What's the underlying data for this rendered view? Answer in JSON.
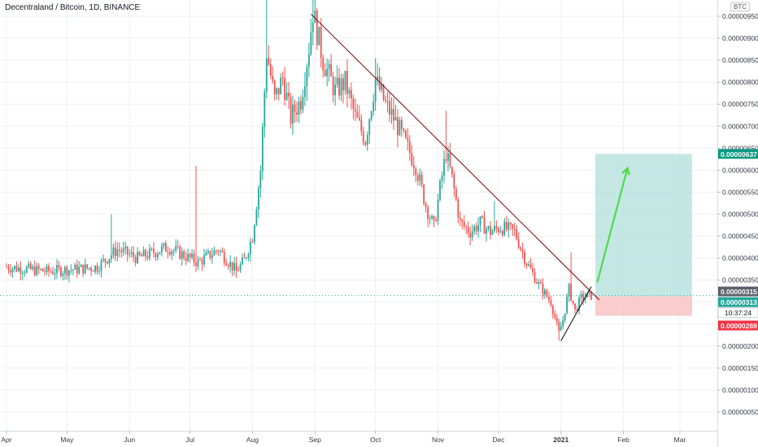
{
  "chart_data": {
    "type": "candlestick",
    "title": "Decentraland / Bitcoin, 1D, BINANCE",
    "unit_badge": "BTC",
    "x_tick_labels": [
      "Apr",
      "May",
      "Jun",
      "Jul",
      "Aug",
      "Sep",
      "Oct",
      "Nov",
      "Dec",
      "2021",
      "Feb",
      "Mar"
    ],
    "x_tick_days": [
      0,
      30,
      61,
      91,
      122,
      153,
      183,
      214,
      244,
      275,
      306,
      334
    ],
    "y_tick_labels": [
      "0.00000950",
      "0.00000900",
      "0.00000850",
      "0.00000800",
      "0.00000750",
      "0.00000700",
      "0.00000650",
      "0.00000600",
      "0.00000550",
      "0.00000500",
      "0.00000450",
      "0.00000400",
      "0.00000350",
      "0.00000300",
      "0.00000250",
      "0.00000200",
      "0.00000150",
      "0.00000100",
      "0.00000050"
    ],
    "y_tick_values": [
      950,
      900,
      850,
      800,
      750,
      700,
      650,
      600,
      550,
      500,
      450,
      400,
      350,
      300,
      250,
      200,
      150,
      100,
      50
    ],
    "price_scale": "1e-8 BTC",
    "ylim": [
      -1,
      1000
    ],
    "grid": true,
    "up_color": "#26a69a",
    "down_color": "#ef5350",
    "price_path": [
      [
        0,
        380
      ],
      [
        20,
        370
      ],
      [
        35,
        375
      ],
      [
        45,
        380
      ],
      [
        55,
        420
      ],
      [
        65,
        400
      ],
      [
        80,
        425
      ],
      [
        95,
        390
      ],
      [
        105,
        420
      ],
      [
        114,
        370
      ],
      [
        118,
        395
      ],
      [
        122,
        450
      ],
      [
        126,
        600
      ],
      [
        129,
        870
      ],
      [
        133,
        760
      ],
      [
        137,
        810
      ],
      [
        141,
        720
      ],
      [
        146,
        760
      ],
      [
        150,
        880
      ],
      [
        152,
        960
      ],
      [
        157,
        850
      ],
      [
        163,
        780
      ],
      [
        168,
        800
      ],
      [
        173,
        720
      ],
      [
        178,
        670
      ],
      [
        183,
        805
      ],
      [
        188,
        750
      ],
      [
        193,
        710
      ],
      [
        198,
        660
      ],
      [
        203,
        610
      ],
      [
        208,
        520
      ],
      [
        212,
        470
      ],
      [
        215,
        560
      ],
      [
        218,
        640
      ],
      [
        221,
        580
      ],
      [
        225,
        480
      ],
      [
        230,
        460
      ],
      [
        235,
        480
      ],
      [
        240,
        460
      ],
      [
        245,
        470
      ],
      [
        252,
        460
      ],
      [
        258,
        390
      ],
      [
        264,
        340
      ],
      [
        270,
        300
      ],
      [
        274,
        230
      ],
      [
        276,
        260
      ],
      [
        279,
        330
      ],
      [
        282,
        280
      ],
      [
        285,
        310
      ],
      [
        290,
        315
      ]
    ],
    "spikes": [
      {
        "day": 52,
        "high": 500
      },
      {
        "day": 94,
        "high": 610
      },
      {
        "day": 129,
        "high": 1000
      },
      {
        "day": 152,
        "high": 990
      },
      {
        "day": 183,
        "high": 855
      },
      {
        "day": 188,
        "high": 770
      },
      {
        "day": 218,
        "high": 735
      },
      {
        "day": 242,
        "high": 530
      },
      {
        "day": 280,
        "high": 413
      }
    ],
    "lows": [
      {
        "day": 114,
        "low": 355
      },
      {
        "day": 274,
        "low": 212
      }
    ],
    "trendlines": [
      {
        "from": [
          151,
          955
        ],
        "to": [
          294,
          305
        ],
        "color": "#7a0000"
      },
      {
        "from": [
          275,
          212
        ],
        "to": [
          290,
          335
        ],
        "color": "#000000"
      }
    ],
    "position": {
      "entry": 313,
      "target": 637,
      "stop": 269,
      "start_day": 292,
      "end_day": 340,
      "profit_color": "#b2dfdb",
      "loss_color": "#f8c4c3"
    },
    "forecast_arrow": {
      "from": [
        293,
        345
      ],
      "to": [
        308,
        605
      ],
      "color": "#4cdb48"
    },
    "current_price_line": 315
  },
  "price_labels": {
    "target": "0.00000637",
    "last": "0.00000315",
    "entry": "0.00000313",
    "countdown": "10:37:24",
    "stop": "0.00000269"
  },
  "price_label_colors": {
    "target": "#089981",
    "last": "#5d606b",
    "entry": "#26a69a",
    "countdown": "#ffffff",
    "stop": "#f23645"
  }
}
